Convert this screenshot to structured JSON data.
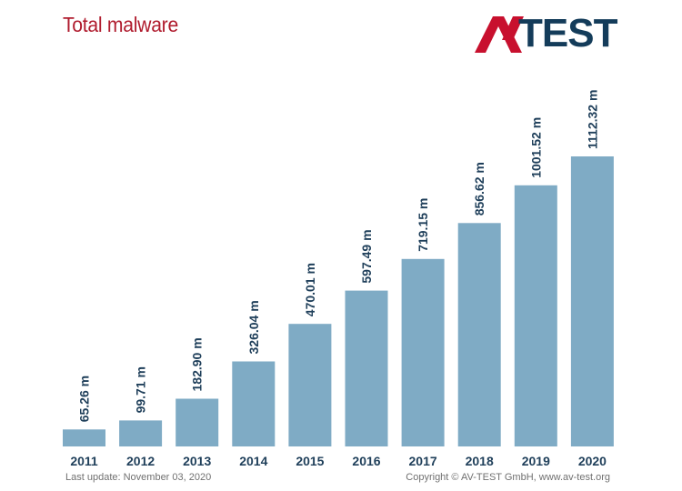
{
  "title": "Total malware",
  "logo": {
    "text": "AV-TEST",
    "mark_color": "#c8102e",
    "word_color": "#143c5a"
  },
  "footer": {
    "last_update": "Last update: November 03, 2020",
    "copyright": "Copyright © AV-TEST GmbH, www.av-test.org"
  },
  "colors": {
    "bar": "#7fabc5",
    "label": "#1f3f5a",
    "title": "#b01c2e"
  },
  "chart_data": {
    "type": "bar",
    "categories": [
      "2011",
      "2012",
      "2013",
      "2014",
      "2015",
      "2016",
      "2017",
      "2018",
      "2019",
      "2020"
    ],
    "values": [
      65.26,
      99.71,
      182.9,
      326.04,
      470.01,
      597.49,
      719.15,
      856.62,
      1001.52,
      1112.32
    ],
    "value_labels": [
      "65.26 m",
      "99.71 m",
      "182.90 m",
      "326.04 m",
      "470.01 m",
      "597.49 m",
      "719.15 m",
      "856.62 m",
      "1001.52 m",
      "1112.32 m"
    ],
    "title": "Total malware",
    "xlabel": "",
    "ylabel": "",
    "ylim": [
      0,
      1112.32
    ],
    "grid": false,
    "legend": "none"
  }
}
